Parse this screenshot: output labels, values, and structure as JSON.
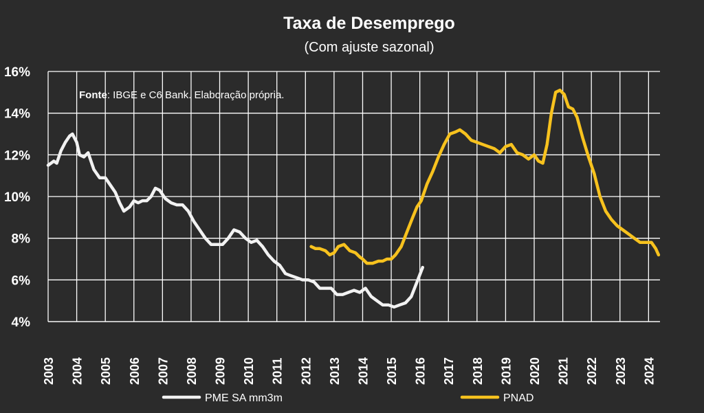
{
  "chart_data": {
    "type": "line",
    "title": "Taxa de Desemprego",
    "subtitle": "(Com ajuste sazonal)",
    "source_label": "Fonte",
    "source_text": ": IBGE e C6 Bank. Elaboração própria.",
    "xlabel": "",
    "ylabel": "",
    "xlim": [
      2003.0,
      2024.4
    ],
    "ylim": [
      4,
      16
    ],
    "x_ticks": [
      "2003",
      "2004",
      "2005",
      "2006",
      "2007",
      "2008",
      "2009",
      "2010",
      "2011",
      "2012",
      "2013",
      "2014",
      "2015",
      "2016",
      "2017",
      "2018",
      "2019",
      "2020",
      "2021",
      "2022",
      "2023",
      "2024"
    ],
    "y_ticks": [
      "4%",
      "6%",
      "8%",
      "10%",
      "12%",
      "14%",
      "16%"
    ],
    "grid": true,
    "legend_position": "bottom",
    "series": [
      {
        "name": "PME SA mm3m",
        "color": "#f2f2f2",
        "x": [
          2003.0,
          2003.1,
          2003.2,
          2003.3,
          2003.45,
          2003.6,
          2003.75,
          2003.85,
          2004.0,
          2004.1,
          2004.25,
          2004.4,
          2004.6,
          2004.8,
          2005.0,
          2005.2,
          2005.35,
          2005.5,
          2005.65,
          2005.85,
          2006.0,
          2006.15,
          2006.3,
          2006.45,
          2006.6,
          2006.75,
          2006.9,
          2007.1,
          2007.3,
          2007.5,
          2007.7,
          2007.9,
          2008.1,
          2008.3,
          2008.5,
          2008.7,
          2008.9,
          2009.1,
          2009.3,
          2009.5,
          2009.7,
          2009.9,
          2010.1,
          2010.3,
          2010.5,
          2010.7,
          2010.9,
          2011.1,
          2011.3,
          2011.5,
          2011.7,
          2011.9,
          2012.1,
          2012.3,
          2012.5,
          2012.7,
          2012.9,
          2013.1,
          2013.3,
          2013.5,
          2013.7,
          2013.9,
          2014.1,
          2014.3,
          2014.5,
          2014.7,
          2014.9,
          2015.1,
          2015.3,
          2015.5,
          2015.7,
          2015.9,
          2016.1
        ],
        "values": [
          11.5,
          11.6,
          11.7,
          11.6,
          12.2,
          12.6,
          12.9,
          13.0,
          12.6,
          12.0,
          11.9,
          12.1,
          11.3,
          10.9,
          10.9,
          10.5,
          10.2,
          9.7,
          9.3,
          9.5,
          9.8,
          9.7,
          9.8,
          9.8,
          10.0,
          10.4,
          10.3,
          9.9,
          9.7,
          9.6,
          9.6,
          9.3,
          8.8,
          8.4,
          8.0,
          7.7,
          7.7,
          7.7,
          8.0,
          8.4,
          8.3,
          8.0,
          7.8,
          7.9,
          7.6,
          7.2,
          6.9,
          6.7,
          6.3,
          6.2,
          6.1,
          6.0,
          6.0,
          5.9,
          5.6,
          5.6,
          5.6,
          5.3,
          5.3,
          5.4,
          5.5,
          5.4,
          5.6,
          5.2,
          5.0,
          4.8,
          4.8,
          4.7,
          4.8,
          4.9,
          5.2,
          5.9,
          6.6
        ]
      },
      {
        "name": "PNAD",
        "color": "#f7c21e",
        "x": [
          2012.2,
          2012.35,
          2012.5,
          2012.7,
          2012.85,
          2013.0,
          2013.15,
          2013.35,
          2013.55,
          2013.75,
          2013.9,
          2014.0,
          2014.15,
          2014.35,
          2014.55,
          2014.7,
          2014.85,
          2015.0,
          2015.15,
          2015.35,
          2015.55,
          2015.75,
          2015.9,
          2016.05,
          2016.25,
          2016.45,
          2016.65,
          2016.85,
          2017.05,
          2017.25,
          2017.4,
          2017.6,
          2017.8,
          2018.0,
          2018.2,
          2018.4,
          2018.6,
          2018.8,
          2019.0,
          2019.2,
          2019.4,
          2019.6,
          2019.8,
          2020.0,
          2020.15,
          2020.3,
          2020.45,
          2020.6,
          2020.75,
          2020.9,
          2021.05,
          2021.2,
          2021.35,
          2021.5,
          2021.7,
          2021.9,
          2022.1,
          2022.3,
          2022.5,
          2022.7,
          2022.9,
          2023.1,
          2023.3,
          2023.5,
          2023.7,
          2023.9,
          2024.1,
          2024.25,
          2024.35
        ],
        "values": [
          7.6,
          7.5,
          7.5,
          7.4,
          7.2,
          7.3,
          7.6,
          7.7,
          7.4,
          7.3,
          7.1,
          7.0,
          6.8,
          6.8,
          6.9,
          6.9,
          7.0,
          7.0,
          7.2,
          7.6,
          8.3,
          9.0,
          9.5,
          9.8,
          10.6,
          11.2,
          11.9,
          12.5,
          13.0,
          13.1,
          13.2,
          13.0,
          12.7,
          12.6,
          12.5,
          12.4,
          12.3,
          12.1,
          12.4,
          12.5,
          12.1,
          12.0,
          11.8,
          12.0,
          11.7,
          11.6,
          12.5,
          14.0,
          15.0,
          15.1,
          14.9,
          14.3,
          14.2,
          13.8,
          12.8,
          11.9,
          11.1,
          10.0,
          9.3,
          8.9,
          8.6,
          8.4,
          8.2,
          8.0,
          7.8,
          7.8,
          7.8,
          7.5,
          7.2
        ]
      }
    ]
  }
}
